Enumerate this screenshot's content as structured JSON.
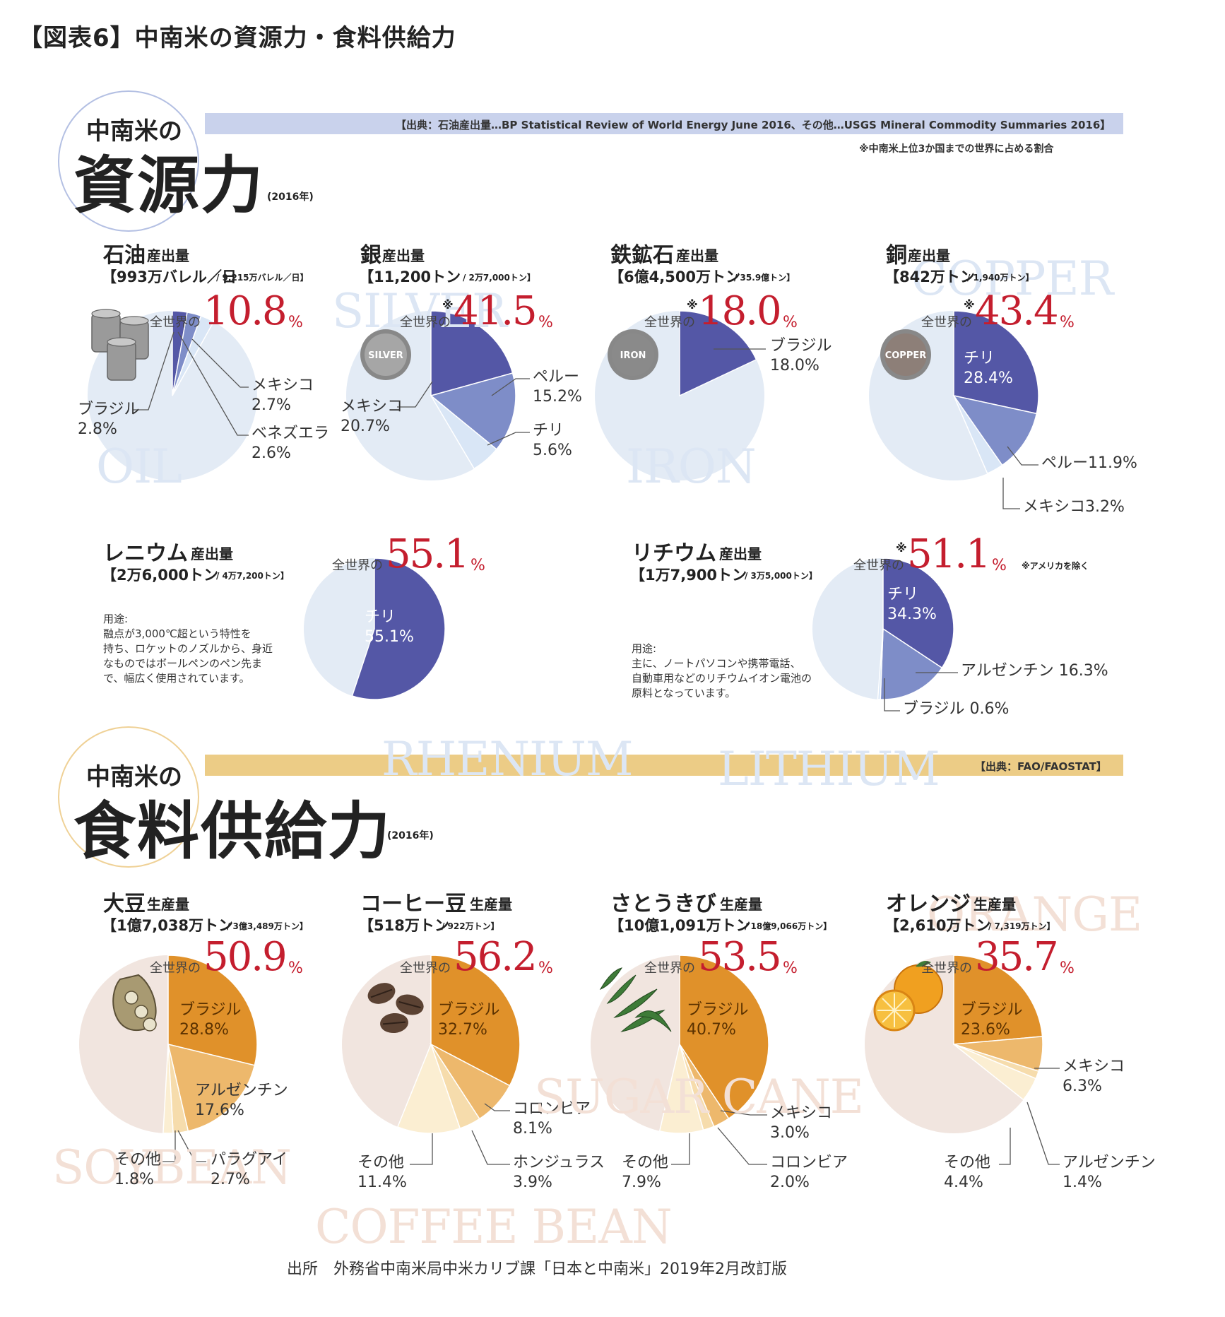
{
  "figure_title": "【図表6】中南米の資源力・食料供給力",
  "source_line": "出所　外務省中南米局中米カリブ課「日本と中南米」2019年2月改訂版",
  "colors": {
    "resource_dark": "#5457a6",
    "resource_mid": "#7e8dc8",
    "resource_light": "#d9e6f6",
    "resource_bg": "#e3ebf5",
    "food_dark": "#e0912a",
    "food_mid": "#edb86c",
    "food_light": "#f6dcac",
    "food_pale": "#fbeed2",
    "food_bg": "#f1e5df",
    "accent_red": "#c41e2e",
    "banner_blue": "#c9d2ec",
    "banner_gold": "#eccc86"
  },
  "resource_section": {
    "heading_small": "中南米の",
    "heading_big": "資源力",
    "year": "(2016年)",
    "banner": "【出典：石油産出量…BP Statistical Review of World Energy June 2016、その他…USGS Mineral Commodity Summaries 2016】",
    "note": "※中南米上位3か国までの世界に占める割合"
  },
  "food_section": {
    "heading_small": "中南米の",
    "heading_big": "食料供給力",
    "year": "(2016年)",
    "banner": "【出典：FAO/FAOSTAT】"
  },
  "world_share_label": "全世界の",
  "percent_unit": "%",
  "asterisk": "※",
  "usage": {
    "rhenium": "用途:\n融点が3,000℃超という特性を\n持ち、ロケットのノズルから、身近\nなものではボールペンのペン先ま\nで、幅広く使用されています。",
    "lithium": "用途:\n主に、ノートパソコンや携帯電話、\n自動車用などのリチウムイオン電池の\n原料となっています。",
    "lithium_note": "※アメリカを除く"
  },
  "icons": {
    "oil": "oil-barrels-icon",
    "silver": "silver-coin-icon",
    "iron": "iron-coin-icon",
    "copper": "copper-coin-icon",
    "soybean": "soybean-pod-icon",
    "coffee": "coffee-beans-icon",
    "sugarcane": "sugarcane-leaves-icon",
    "orange": "orange-fruit-icon"
  },
  "coin_labels": {
    "silver": "SILVER",
    "iron": "IRON",
    "copper": "COPPER"
  },
  "chart_data": [
    {
      "id": "oil",
      "type": "pie",
      "name": "石油",
      "kind": "産出量",
      "amount": "【993万バレル／日",
      "total": "/ 9,215万バレル／日】",
      "watermark": "OIL",
      "world_share": "10.8",
      "slices": [
        {
          "label": "ブラジル",
          "value": 2.8
        },
        {
          "label": "メキシコ",
          "value": 2.7
        },
        {
          "label": "ベネズエラ",
          "value": 2.6
        }
      ]
    },
    {
      "id": "silver",
      "type": "pie",
      "name": "銀",
      "kind": "産出量",
      "amount": "【11,200トン",
      "total": "/ 2万7,000トン】",
      "watermark": "SILVER",
      "world_share": "41.5",
      "asterisk": true,
      "slices": [
        {
          "label": "メキシコ",
          "value": 20.7
        },
        {
          "label": "ペルー",
          "value": 15.2
        },
        {
          "label": "チリ",
          "value": 5.6
        }
      ]
    },
    {
      "id": "iron",
      "type": "pie",
      "name": "鉄鉱石",
      "kind": "産出量",
      "amount": "【6億4,500万トン",
      "total": "/ 35.9億トン】",
      "watermark": "IRON",
      "world_share": "18.0",
      "asterisk": true,
      "slices": [
        {
          "label": "ブラジル",
          "value": 18.0
        }
      ]
    },
    {
      "id": "copper",
      "type": "pie",
      "name": "銅",
      "kind": "産出量",
      "amount": "【842万トン",
      "total": "/ 1,940万トン】",
      "watermark": "COPPER",
      "world_share": "43.4",
      "asterisk": true,
      "slices": [
        {
          "label": "チリ",
          "value": 28.4
        },
        {
          "label": "ペルー",
          "value": 11.9
        },
        {
          "label": "メキシコ",
          "value": 3.2
        }
      ]
    },
    {
      "id": "rhenium",
      "type": "pie",
      "name": "レニウム",
      "kind": "産出量",
      "amount": "【2万6,000トン",
      "total": "/ 4万7,200トン】",
      "watermark": "RHENIUM",
      "world_share": "55.1",
      "slices": [
        {
          "label": "チリ",
          "value": 55.1
        }
      ]
    },
    {
      "id": "lithium",
      "type": "pie",
      "name": "リチウム",
      "kind": "産出量",
      "amount": "【1万7,900トン",
      "total": "/ 3万5,000トン】",
      "watermark": "LITHIUM",
      "world_share": "51.1",
      "asterisk": true,
      "slices": [
        {
          "label": "チリ",
          "value": 34.3
        },
        {
          "label": "アルゼンチン",
          "value": 16.3
        },
        {
          "label": "ブラジル",
          "value": 0.6
        }
      ]
    },
    {
      "id": "soybean",
      "type": "pie",
      "name": "大豆",
      "kind": "生産量",
      "amount": "【1億7,038万トン",
      "total": "/ 3億3,489万トン】",
      "watermark": "SOYBEAN",
      "world_share": "50.9",
      "slices": [
        {
          "label": "ブラジル",
          "value": 28.8
        },
        {
          "label": "アルゼンチン",
          "value": 17.6
        },
        {
          "label": "パラグアイ",
          "value": 2.7
        },
        {
          "label": "その他",
          "value": 1.8
        }
      ]
    },
    {
      "id": "coffee",
      "type": "pie",
      "name": "コーヒー豆",
      "kind": "生産量",
      "amount": "【518万トン",
      "total": "/ 922万トン】",
      "watermark": "COFFEE BEAN",
      "world_share": "56.2",
      "slices": [
        {
          "label": "ブラジル",
          "value": 32.7
        },
        {
          "label": "コロンビア",
          "value": 8.1
        },
        {
          "label": "ホンジュラス",
          "value": 3.9
        },
        {
          "label": "その他",
          "value": 11.4
        }
      ]
    },
    {
      "id": "sugarcane",
      "type": "pie",
      "name": "さとうきび",
      "kind": "生産量",
      "amount": "【10億1,091万トン",
      "total": "/ 18億9,066万トン】",
      "watermark": "SUGAR CANE",
      "world_share": "53.5",
      "slices": [
        {
          "label": "ブラジル",
          "value": 40.7
        },
        {
          "label": "メキシコ",
          "value": 3.0
        },
        {
          "label": "コロンビア",
          "value": 2.0
        },
        {
          "label": "その他",
          "value": 7.9
        }
      ]
    },
    {
      "id": "orange",
      "type": "pie",
      "name": "オレンジ",
      "kind": "生産量",
      "amount": "【2,610万トン",
      "total": "/ 7,319万トン】",
      "watermark": "ORANGE",
      "world_share": "35.7",
      "slices": [
        {
          "label": "ブラジル",
          "value": 23.6
        },
        {
          "label": "メキシコ",
          "value": 6.3
        },
        {
          "label": "アルゼンチン",
          "value": 1.4
        },
        {
          "label": "その他",
          "value": 4.4
        }
      ]
    }
  ],
  "slice_labels": {
    "oil": [
      "ブラジル\n2.8%",
      "メキシコ\n2.7%",
      "ベネズエラ\n2.6%"
    ],
    "silver": [
      "メキシコ\n20.7%",
      "ペルー\n15.2%",
      "チリ\n5.6%"
    ],
    "iron": [
      "ブラジル\n18.0%"
    ],
    "copper": [
      "チリ\n28.4%",
      "ペルー11.9%",
      "メキシコ3.2%"
    ],
    "rhenium": [
      "チリ\n55.1%"
    ],
    "lithium": [
      "チリ\n34.3%",
      "アルゼンチン 16.3%",
      "ブラジル 0.6%"
    ],
    "soybean": [
      "ブラジル\n28.8%",
      "アルゼンチン\n17.6%",
      "パラグアイ\n2.7%",
      "その他\n1.8%"
    ],
    "coffee": [
      "ブラジル\n32.7%",
      "コロンビア\n8.1%",
      "ホンジュラス\n3.9%",
      "その他\n11.4%"
    ],
    "sugarcane": [
      "ブラジル\n40.7%",
      "メキシコ\n3.0%",
      "コロンビア\n2.0%",
      "その他\n7.9%"
    ],
    "orange": [
      "ブラジル\n23.6%",
      "メキシコ\n6.3%",
      "アルゼンチン\n1.4%",
      "その他\n4.4%"
    ]
  }
}
